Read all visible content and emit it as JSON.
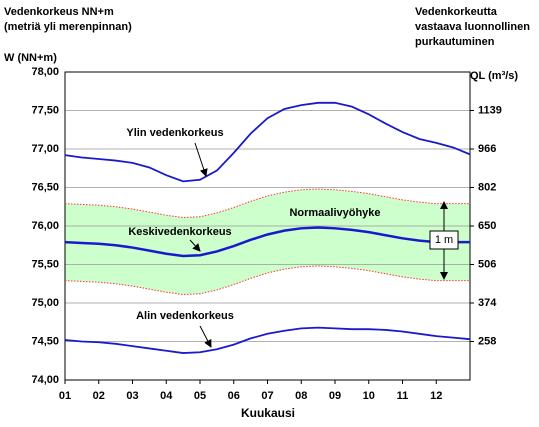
{
  "chart_data": {
    "type": "line",
    "title_lines": [
      "Vedenkorkeus NN+m",
      "(metriä yli merenpinnan)"
    ],
    "y_label": "W (NN+m)",
    "right_title_lines": [
      "Vedenkorkeutta",
      "vastaava luonnollinen",
      "purkautuminen"
    ],
    "y2_label": "QL (m³/s)",
    "x_label": "Kuukausi",
    "xlim": [
      1,
      13
    ],
    "xticks": [
      {
        "value": 1,
        "label": "01"
      },
      {
        "value": 2,
        "label": "02"
      },
      {
        "value": 3,
        "label": "03"
      },
      {
        "value": 4,
        "label": "04"
      },
      {
        "value": 5,
        "label": "05"
      },
      {
        "value": 6,
        "label": "06"
      },
      {
        "value": 7,
        "label": "07"
      },
      {
        "value": 8,
        "label": "08"
      },
      {
        "value": 9,
        "label": "09"
      },
      {
        "value": 10,
        "label": "10"
      },
      {
        "value": 11,
        "label": "11"
      },
      {
        "value": 12,
        "label": "12"
      }
    ],
    "ylim": [
      74,
      78
    ],
    "yticks": [
      {
        "value": 74,
        "label": "74,00"
      },
      {
        "value": 74.5,
        "label": "74,50"
      },
      {
        "value": 75,
        "label": "75,00"
      },
      {
        "value": 75.5,
        "label": "75,50"
      },
      {
        "value": 76,
        "label": "76,00"
      },
      {
        "value": 76.5,
        "label": "76,50"
      },
      {
        "value": 77,
        "label": "77,00"
      },
      {
        "value": 77.5,
        "label": "77,50"
      },
      {
        "value": 78,
        "label": "78,00"
      }
    ],
    "right_axis_ticks": [
      {
        "level": 74.5,
        "discharge": 258
      },
      {
        "level": 75,
        "discharge": 374
      },
      {
        "level": 75.5,
        "discharge": 506
      },
      {
        "level": 76,
        "discharge": 650
      },
      {
        "level": 76.5,
        "discharge": 802
      },
      {
        "level": 77,
        "discharge": 966
      },
      {
        "level": 77.5,
        "discharge": 1139
      }
    ],
    "grid": true,
    "band_color": "#ccffcc",
    "band_annotation": "Normaalivyöhyke",
    "band_width_label": "1 m",
    "x": [
      1,
      1.5,
      2,
      2.5,
      3,
      3.5,
      4,
      4.5,
      5,
      5.5,
      6,
      6.5,
      7,
      7.5,
      8,
      8.5,
      9,
      9.5,
      10,
      10.5,
      11,
      11.5,
      12,
      12.5,
      13
    ],
    "band_upper": {
      "color": "#ff3333",
      "values": [
        76.29,
        76.28,
        76.27,
        76.25,
        76.22,
        76.18,
        76.14,
        76.11,
        76.12,
        76.17,
        76.24,
        76.32,
        76.39,
        76.44,
        76.47,
        76.48,
        76.47,
        76.45,
        76.42,
        76.38,
        76.34,
        76.31,
        76.29,
        76.29,
        76.29
      ]
    },
    "band_lower": {
      "color": "#ff3333",
      "values": [
        75.29,
        75.28,
        75.27,
        75.25,
        75.22,
        75.18,
        75.14,
        75.11,
        75.12,
        75.17,
        75.24,
        75.32,
        75.39,
        75.44,
        75.47,
        75.48,
        75.47,
        75.45,
        75.42,
        75.38,
        75.34,
        75.31,
        75.29,
        75.29,
        75.29
      ]
    },
    "series": [
      {
        "name": "Ylin vedenkorkeus",
        "color": "#1a1acc",
        "values": [
          76.92,
          76.89,
          76.87,
          76.85,
          76.82,
          76.76,
          76.66,
          76.58,
          76.6,
          76.72,
          76.95,
          77.2,
          77.4,
          77.52,
          77.57,
          77.6,
          77.6,
          77.55,
          77.45,
          77.33,
          77.22,
          77.13,
          77.08,
          77.02,
          76.93
        ]
      },
      {
        "name": "Keskivedenkorkeus",
        "color": "#1a1acc",
        "values": [
          75.79,
          75.78,
          75.77,
          75.75,
          75.72,
          75.68,
          75.64,
          75.61,
          75.62,
          75.67,
          75.74,
          75.82,
          75.89,
          75.94,
          75.97,
          75.98,
          75.97,
          75.95,
          75.92,
          75.88,
          75.84,
          75.81,
          75.79,
          75.79,
          75.79
        ]
      },
      {
        "name": "Alin vedenkorkeus",
        "color": "#1a1acc",
        "values": [
          74.52,
          74.5,
          74.49,
          74.47,
          74.44,
          74.41,
          74.38,
          74.35,
          74.36,
          74.4,
          74.46,
          74.54,
          74.6,
          74.64,
          74.67,
          74.68,
          74.67,
          74.66,
          74.66,
          74.65,
          74.63,
          74.6,
          74.57,
          74.55,
          74.53
        ]
      }
    ]
  }
}
